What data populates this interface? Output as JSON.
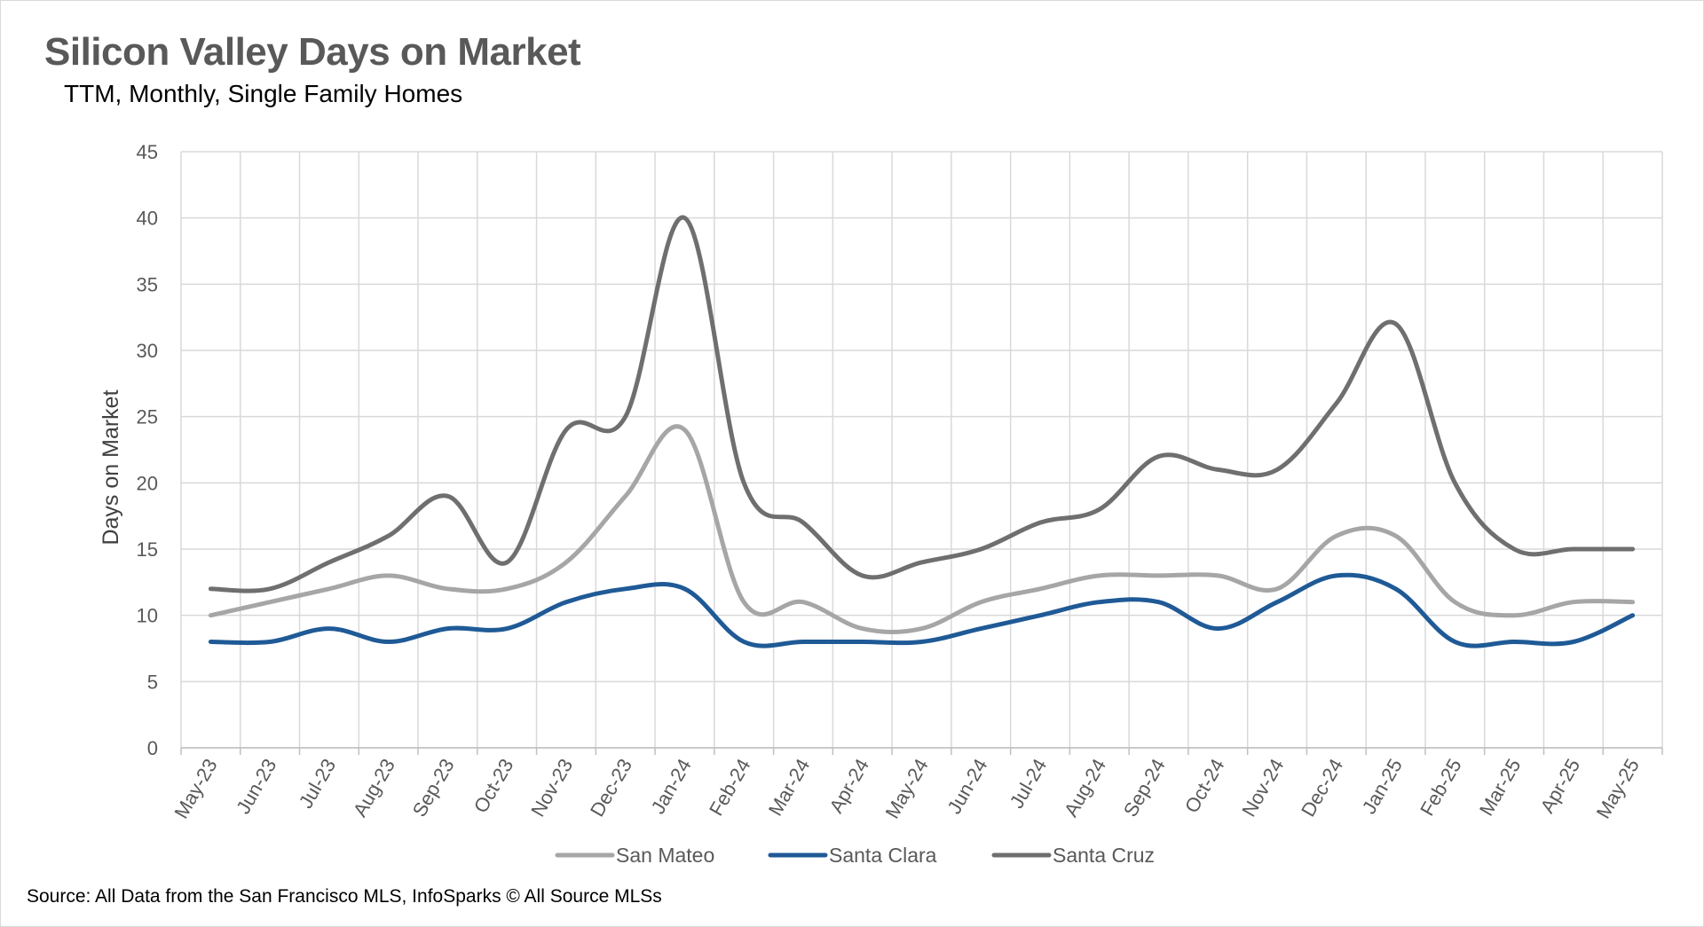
{
  "title": "Silicon Valley Days on Market",
  "subtitle": "TTM, Monthly, Single Family Homes",
  "source": "Source: All Data from the San Francisco MLS, InfoSparks © All Source MLSs",
  "chart_data": {
    "type": "line",
    "title": "Silicon Valley Days on Market",
    "subtitle": "TTM, Monthly, Single Family Homes",
    "xlabel": "",
    "ylabel": "Days on Market",
    "ylim": [
      0,
      45
    ],
    "yticks": [
      0,
      5,
      10,
      15,
      20,
      25,
      30,
      35,
      40,
      45
    ],
    "grid": true,
    "legend_position": "bottom",
    "x": [
      "May-23",
      "Jun-23",
      "Jul-23",
      "Aug-23",
      "Sep-23",
      "Oct-23",
      "Nov-23",
      "Dec-23",
      "Jan-24",
      "Feb-24",
      "Mar-24",
      "Apr-24",
      "May-24",
      "Jun-24",
      "Jul-24",
      "Aug-24",
      "Sep-24",
      "Oct-24",
      "Nov-24",
      "Dec-24",
      "Jan-25",
      "Feb-25",
      "Mar-25",
      "Apr-25",
      "May-25"
    ],
    "series": [
      {
        "name": "San Mateo",
        "color": "#a6a6a6",
        "values": [
          10,
          11,
          12,
          13,
          12,
          12,
          14,
          19,
          24,
          11,
          11,
          9,
          9,
          11,
          12,
          13,
          13,
          13,
          12,
          16,
          16,
          11,
          10,
          11,
          11
        ]
      },
      {
        "name": "Santa Clara",
        "color": "#1f5a96",
        "values": [
          8,
          8,
          9,
          8,
          9,
          9,
          11,
          12,
          12,
          8,
          8,
          8,
          8,
          9,
          10,
          11,
          11,
          9,
          11,
          13,
          12,
          8,
          8,
          8,
          10
        ]
      },
      {
        "name": "Santa Cruz",
        "color": "#6f6f6f",
        "values": [
          12,
          12,
          14,
          16,
          19,
          14,
          24,
          25,
          40,
          20,
          17,
          13,
          14,
          15,
          17,
          18,
          22,
          21,
          21,
          26,
          32,
          20,
          15,
          15,
          15
        ]
      }
    ]
  }
}
